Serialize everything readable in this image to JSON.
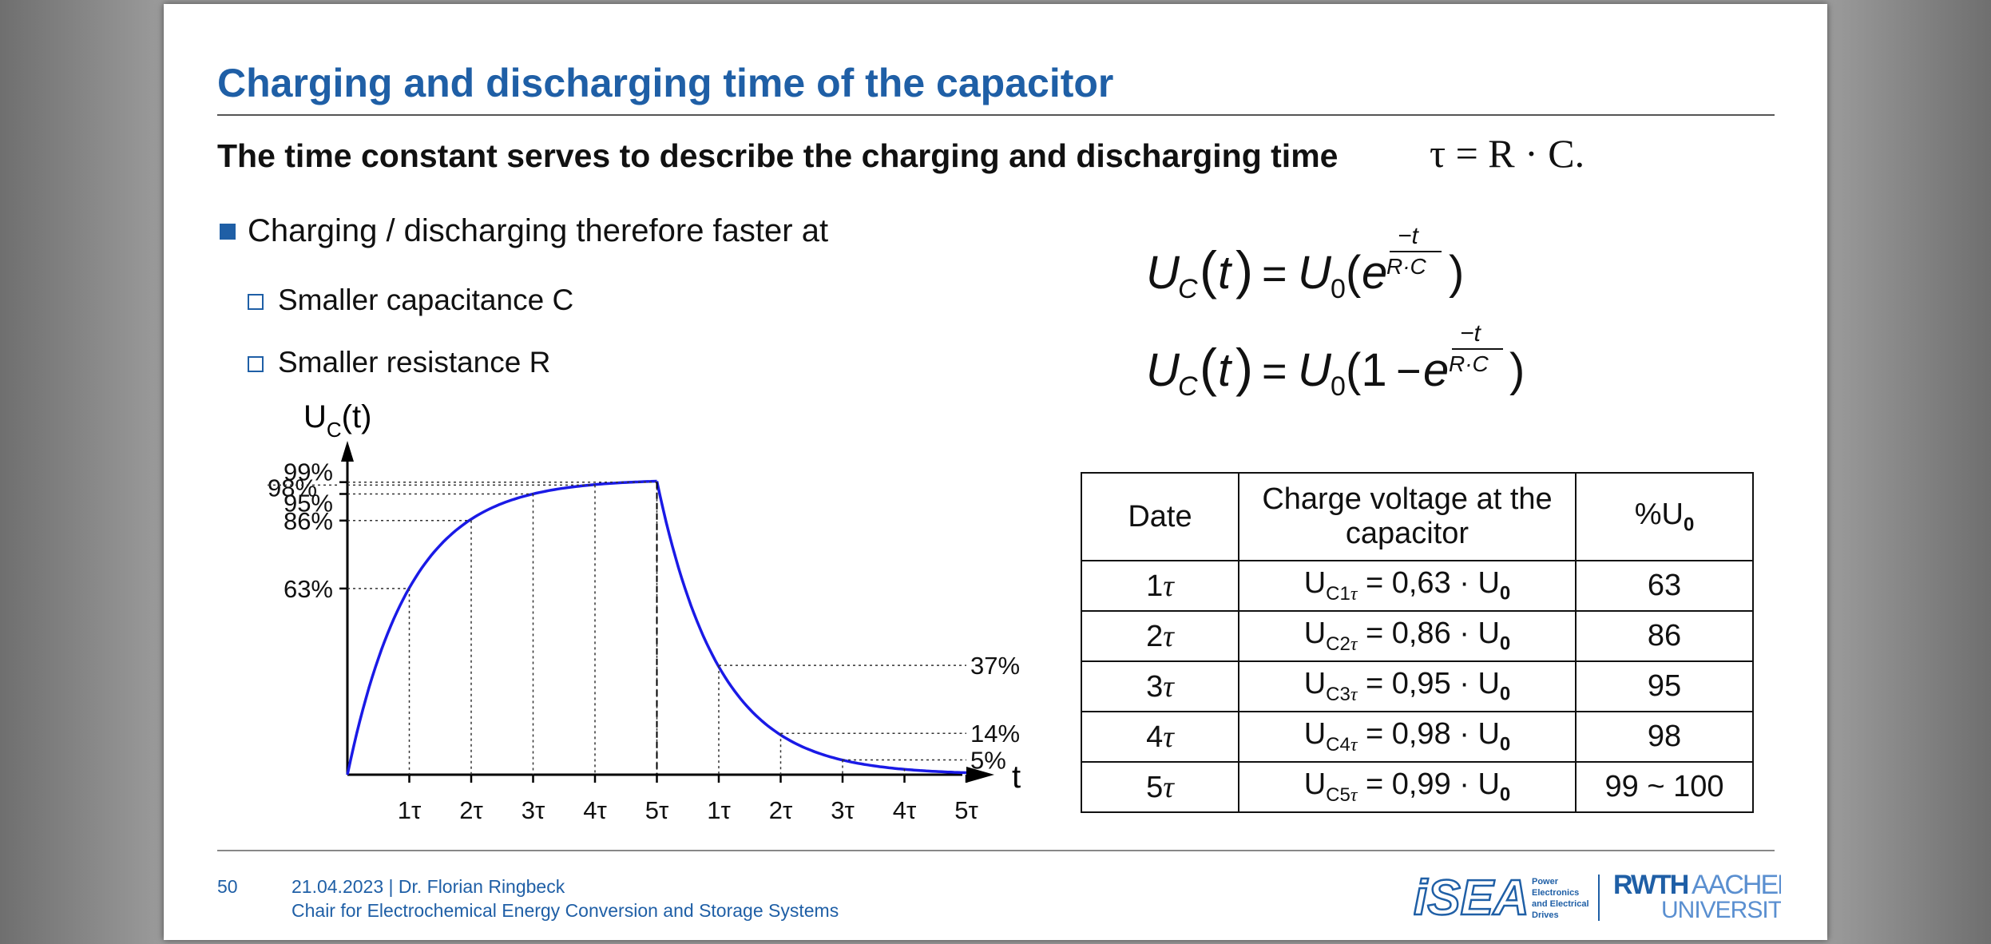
{
  "slide": {
    "title": "Charging and discharging time of the capacitor",
    "subtitle": "The time constant serves to describe the charging and discharging time",
    "tau_formula": "τ = R · C.",
    "bullet_main": "Charging / discharging therefore faster at",
    "sub_bullets": [
      "Smaller capacitance C",
      "Smaller resistance R"
    ],
    "formula_discharge": "U_C(t) = U_0(e^(−t/(R·C)))",
    "formula_charge": "U_C(t) = U_0(1 − e^(−t/(R·C)))"
  },
  "chart_data": {
    "type": "line",
    "ylabel": "U_C(t)",
    "xlabel": "t",
    "x_ticks": [
      "1τ",
      "2τ",
      "3τ",
      "4τ",
      "5τ",
      "1τ",
      "2τ",
      "3τ",
      "4τ",
      "5τ"
    ],
    "y_ticks_left": [
      "99%",
      "98%",
      "95%",
      "86%",
      "63%"
    ],
    "right_labels": [
      "37%",
      "14%",
      "5%"
    ],
    "series": [
      {
        "phase": "charging",
        "x_tau": [
          0,
          1,
          2,
          3,
          4,
          5
        ],
        "percent": [
          0,
          63,
          86,
          95,
          98,
          99
        ]
      },
      {
        "phase": "discharging",
        "x_tau": [
          5,
          6,
          7,
          8,
          9,
          10
        ],
        "percent": [
          99,
          37,
          14,
          5,
          2,
          1
        ]
      }
    ],
    "line_color": "#1a1ae6"
  },
  "table": {
    "headers": [
      "Date",
      "Charge voltage at the capacitor",
      "%U"
    ],
    "header_sub": "0",
    "rows": [
      {
        "time": "1",
        "formula_prefix": "U",
        "formula_sub": "C1",
        "value": " = 0,63 · U",
        "percent": "63"
      },
      {
        "time": "2",
        "formula_prefix": "U",
        "formula_sub": "C2",
        "value": " = 0,86 · U",
        "percent": "86"
      },
      {
        "time": "3",
        "formula_prefix": "U",
        "formula_sub": "C3",
        "value": " = 0,95 · U",
        "percent": "95"
      },
      {
        "time": "4",
        "formula_prefix": "U",
        "formula_sub": "C4",
        "value": " = 0,98 · U",
        "percent": "98"
      },
      {
        "time": "5",
        "formula_prefix": "U",
        "formula_sub": "C5",
        "value": " = 0,99 · U",
        "percent": "99 ~ 100"
      }
    ]
  },
  "footer": {
    "page_number": "50",
    "date_author": "21.04.2023  |  Dr. Florian Ringbeck",
    "chair": "Chair for Electrochemical Energy Conversion and Storage Systems",
    "logo_isea": "iSEA",
    "logo_isea_tagline": [
      "Power",
      "Electronics",
      "and Electrical",
      "Drives"
    ],
    "logo_rwth": "RWTH",
    "logo_rwth_aachen": "AACHEN",
    "logo_rwth_university": "UNIVERSITY"
  },
  "colors": {
    "brand_blue": "#1f5fa6",
    "curve_blue": "#1a1ae6"
  }
}
